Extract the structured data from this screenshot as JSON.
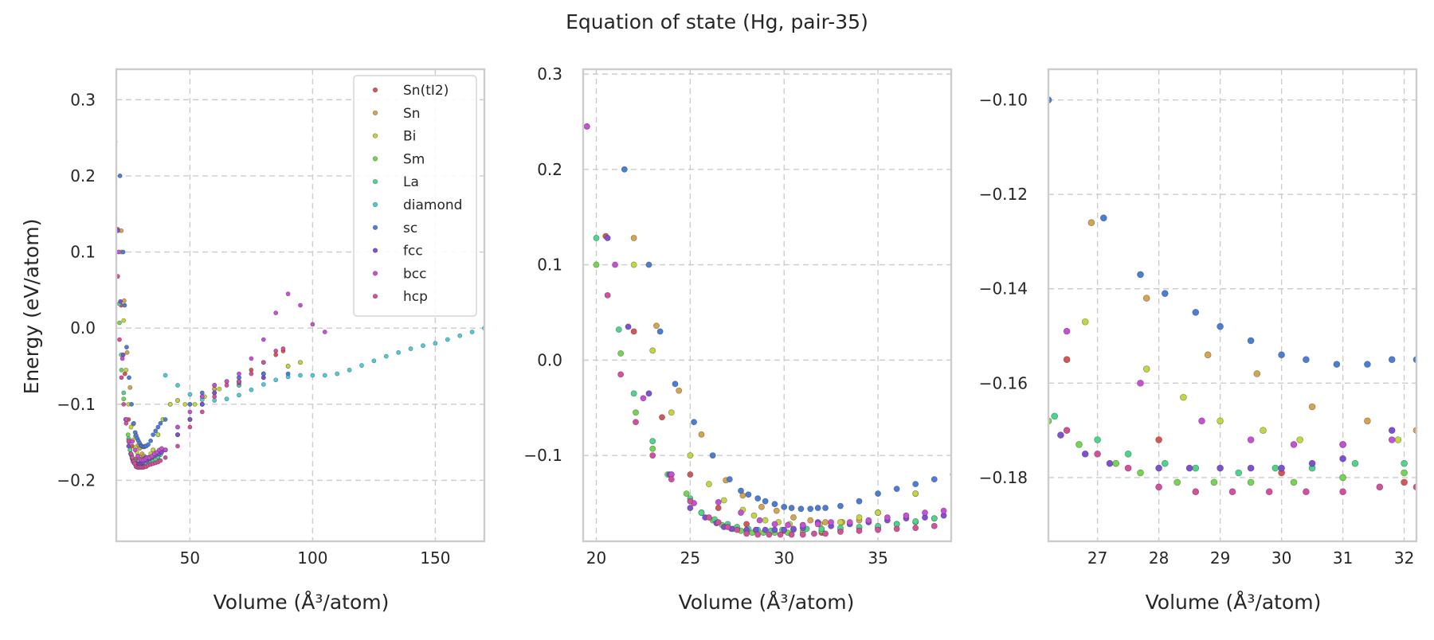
{
  "chart_data": {
    "type": "scatter",
    "title": "Equation of state (Hg, pair-35)",
    "ylabel": "Energy (eV/atom)",
    "xlabel": "Volume (Å³/atom)",
    "legend": {
      "placement": "top-right",
      "panel": 0
    },
    "grid": true,
    "series_meta": [
      {
        "name": "Sn(tI2)",
        "color": "#d65656"
      },
      {
        "name": "Sn",
        "color": "#d6a34f"
      },
      {
        "name": "Bi",
        "color": "#c3d640"
      },
      {
        "name": "Sm",
        "color": "#72d650"
      },
      {
        "name": "La",
        "color": "#4bd68c"
      },
      {
        "name": "diamond",
        "color": "#4bcdd6"
      },
      {
        "name": "sc",
        "color": "#4a7ed6"
      },
      {
        "name": "fcc",
        "color": "#7f4fd6"
      },
      {
        "name": "bcc",
        "color": "#c94fd6"
      },
      {
        "name": "hcp",
        "color": "#d64f9c"
      }
    ],
    "panels": [
      {
        "xlim": [
          20,
          170
        ],
        "ylim": [
          -0.28,
          0.34
        ],
        "xticks": [
          50,
          100,
          150
        ],
        "xtick_labels": [
          "50",
          "100",
          "150"
        ],
        "yticks": [
          -0.2,
          -0.1,
          0.0,
          0.1,
          0.2,
          0.3
        ],
        "ytick_labels": [
          "−0.2",
          "−0.1",
          "0.0",
          "0.1",
          "0.2",
          "0.3"
        ],
        "marker_size": 2.6
      },
      {
        "xlim": [
          19.3,
          38.9
        ],
        "ylim": [
          -0.19,
          0.305
        ],
        "xticks": [
          20,
          25,
          30,
          35
        ],
        "xtick_labels": [
          "20",
          "25",
          "30",
          "35"
        ],
        "yticks": [
          -0.1,
          0.0,
          0.1,
          0.2,
          0.3
        ],
        "ytick_labels": [
          "−0.1",
          "0.0",
          "0.1",
          "0.2",
          "0.3"
        ],
        "marker_size": 3.6
      },
      {
        "xlim": [
          26.2,
          32.2
        ],
        "ylim": [
          -0.1935,
          -0.0935
        ],
        "xticks": [
          27,
          28,
          29,
          30,
          31,
          32
        ],
        "xtick_labels": [
          "27",
          "28",
          "29",
          "30",
          "31",
          "32"
        ],
        "yticks": [
          -0.18,
          -0.16,
          -0.14,
          -0.12,
          -0.1
        ],
        "ytick_labels": [
          "−0.18",
          "−0.16",
          "−0.14",
          "−0.12",
          "−0.10"
        ],
        "marker_size": 4.0
      }
    ],
    "series": [
      {
        "name": "Sn(tI2)",
        "x": [
          20.5,
          22,
          23.5,
          25,
          26.5,
          28,
          30,
          32,
          35,
          40,
          45,
          50,
          55,
          60,
          65,
          70,
          75,
          80,
          85,
          88
        ],
        "y": [
          0.13,
          0.03,
          -0.06,
          -0.12,
          -0.155,
          -0.172,
          -0.179,
          -0.181,
          -0.177,
          -0.16,
          -0.14,
          -0.12,
          -0.1,
          -0.08,
          -0.07,
          -0.065,
          -0.055,
          -0.045,
          -0.035,
          -0.03
        ]
      },
      {
        "name": "Sn",
        "x": [
          22,
          23.2,
          24.4,
          25.6,
          26.9,
          27.8,
          28.8,
          29.6,
          30.5,
          31.4,
          32.2,
          33.1,
          34,
          35,
          37,
          39,
          42,
          45,
          50,
          55,
          60,
          70,
          80,
          90,
          95
        ],
        "y": [
          0.128,
          0.036,
          -0.032,
          -0.078,
          -0.126,
          -0.142,
          -0.154,
          -0.158,
          -0.165,
          -0.168,
          -0.17,
          -0.17,
          -0.168,
          -0.16,
          -0.14,
          -0.12,
          -0.1,
          -0.095,
          -0.1,
          -0.09,
          -0.08,
          -0.07,
          -0.06,
          -0.05,
          -0.045
        ]
      },
      {
        "name": "Bi",
        "x": [
          22,
          23,
          24,
          25,
          26,
          26.8,
          27.8,
          28.4,
          29,
          29.7,
          30.3,
          31,
          31.9,
          33,
          34,
          35,
          37,
          39,
          42,
          45,
          48,
          52,
          56,
          62,
          70,
          80,
          90,
          95
        ],
        "y": [
          0.1,
          0.01,
          -0.055,
          -0.1,
          -0.13,
          -0.147,
          -0.157,
          -0.163,
          -0.168,
          -0.17,
          -0.172,
          -0.173,
          -0.172,
          -0.17,
          -0.165,
          -0.16,
          -0.14,
          -0.12,
          -0.1,
          -0.095,
          -0.1,
          -0.1,
          -0.09,
          -0.08,
          -0.07,
          -0.06,
          -0.05,
          -0.045
        ]
      },
      {
        "name": "Sm",
        "x": [
          20,
          21.3,
          22.1,
          23,
          23.8,
          24.8,
          25.6,
          26.2,
          26.7,
          27.3,
          27.7,
          28.3,
          28.9,
          29.5,
          30.2,
          31,
          32,
          33,
          34,
          35,
          36,
          37,
          38,
          40,
          45,
          50,
          55,
          60,
          70,
          80
        ],
        "y": [
          0.1,
          0.007,
          -0.055,
          -0.093,
          -0.12,
          -0.14,
          -0.16,
          -0.168,
          -0.173,
          -0.177,
          -0.179,
          -0.181,
          -0.181,
          -0.181,
          -0.181,
          -0.18,
          -0.179,
          -0.178,
          -0.176,
          -0.175,
          -0.172,
          -0.17,
          -0.166,
          -0.16,
          -0.14,
          -0.12,
          -0.1,
          -0.085,
          -0.075,
          -0.065
        ]
      },
      {
        "name": "La",
        "x": [
          20,
          21.2,
          22,
          23,
          24,
          25,
          25.6,
          26.3,
          27,
          27.5,
          28.1,
          28.6,
          29.3,
          29.9,
          30.5,
          31.2,
          32,
          33,
          34,
          35,
          36,
          37,
          38,
          40,
          45,
          50,
          55,
          60,
          70
        ],
        "y": [
          0.128,
          0.032,
          -0.035,
          -0.085,
          -0.12,
          -0.145,
          -0.16,
          -0.167,
          -0.172,
          -0.175,
          -0.177,
          -0.178,
          -0.179,
          -0.178,
          -0.178,
          -0.177,
          -0.177,
          -0.176,
          -0.175,
          -0.174,
          -0.172,
          -0.169,
          -0.166,
          -0.16,
          -0.14,
          -0.12,
          -0.1,
          -0.085,
          -0.075
        ]
      },
      {
        "name": "diamond",
        "x": [
          40,
          45,
          50,
          55,
          60,
          65,
          70,
          75,
          80,
          85,
          90,
          95,
          100,
          105,
          110,
          115,
          120,
          125,
          130,
          135,
          140,
          145,
          150,
          155,
          160,
          165,
          170
        ],
        "y": [
          -0.062,
          -0.075,
          -0.087,
          -0.094,
          -0.095,
          -0.093,
          -0.088,
          -0.081,
          -0.074,
          -0.068,
          -0.064,
          -0.062,
          -0.062,
          -0.062,
          -0.06,
          -0.055,
          -0.049,
          -0.043,
          -0.037,
          -0.032,
          -0.027,
          -0.023,
          -0.02,
          -0.015,
          -0.01,
          -0.005,
          0.0
        ]
      },
      {
        "name": "sc",
        "x": [
          21.5,
          22.8,
          23.4,
          24.2,
          25.2,
          26.2,
          27.1,
          27.7,
          28.1,
          28.6,
          29,
          29.5,
          30,
          30.4,
          30.9,
          31.4,
          31.8,
          32.2,
          33,
          34,
          35,
          36,
          37,
          38,
          40,
          45,
          50,
          55,
          60,
          70,
          80,
          90
        ],
        "y": [
          0.2,
          0.1,
          0.03,
          -0.025,
          -0.065,
          -0.1,
          -0.125,
          -0.137,
          -0.141,
          -0.145,
          -0.148,
          -0.151,
          -0.154,
          -0.155,
          -0.156,
          -0.156,
          -0.155,
          -0.155,
          -0.153,
          -0.148,
          -0.14,
          -0.135,
          -0.13,
          -0.125,
          -0.12,
          -0.13,
          -0.1,
          -0.085,
          -0.075,
          -0.065,
          -0.06,
          -0.06
        ]
      },
      {
        "name": "fcc",
        "x": [
          19.5,
          20.6,
          21.7,
          22.8,
          23.9,
          25,
          25.8,
          26.4,
          26.8,
          27.2,
          28,
          28.5,
          29,
          29.5,
          30,
          30.5,
          31,
          31.8,
          32.5,
          33.5,
          34.5,
          35.5,
          36.5,
          37.5,
          38.5,
          40,
          45,
          50,
          55,
          60,
          70,
          80
        ],
        "y": [
          0.245,
          0.128,
          0.035,
          -0.035,
          -0.12,
          -0.155,
          -0.165,
          -0.171,
          -0.175,
          -0.177,
          -0.178,
          -0.178,
          -0.178,
          -0.178,
          -0.178,
          -0.177,
          -0.176,
          -0.17,
          -0.174,
          -0.172,
          -0.17,
          -0.168,
          -0.166,
          -0.165,
          -0.163,
          -0.16,
          -0.14,
          -0.12,
          -0.1,
          -0.085,
          -0.072,
          -0.065
        ]
      },
      {
        "name": "bcc",
        "x": [
          19.5,
          21,
          22.5,
          24,
          25.2,
          26.5,
          27.7,
          28.7,
          29.5,
          30.2,
          31,
          31.8,
          32.5,
          33.5,
          34.5,
          35.5,
          36.5,
          37.5,
          38.5,
          40,
          45,
          50,
          55,
          60,
          65,
          70,
          75,
          80,
          85,
          90,
          95,
          100,
          105
        ],
        "y": [
          0.245,
          0.1,
          -0.04,
          -0.12,
          -0.15,
          -0.149,
          -0.16,
          -0.168,
          -0.172,
          -0.173,
          -0.173,
          -0.172,
          -0.17,
          -0.17,
          -0.168,
          -0.165,
          -0.163,
          -0.16,
          -0.158,
          -0.16,
          -0.13,
          -0.11,
          -0.09,
          -0.075,
          -0.07,
          -0.06,
          -0.04,
          -0.015,
          0.02,
          0.045,
          0.03,
          0.005,
          -0.005
        ]
      },
      {
        "name": "hcp",
        "x": [
          20.6,
          21.3,
          22.1,
          23,
          24,
          25,
          26,
          26.5,
          27,
          27.5,
          28,
          28.6,
          29.2,
          29.8,
          30.4,
          31,
          31.6,
          32.2,
          33,
          34,
          35,
          36,
          37,
          38,
          40,
          45,
          50,
          55,
          60,
          65,
          70,
          75,
          80,
          85,
          88
        ],
        "y": [
          0.068,
          -0.015,
          -0.065,
          -0.1,
          -0.125,
          -0.148,
          -0.165,
          -0.17,
          -0.175,
          -0.178,
          -0.182,
          -0.183,
          -0.183,
          -0.183,
          -0.183,
          -0.183,
          -0.182,
          -0.182,
          -0.18,
          -0.179,
          -0.178,
          -0.177,
          -0.176,
          -0.174,
          -0.17,
          -0.155,
          -0.13,
          -0.11,
          -0.09,
          -0.075,
          -0.07,
          -0.06,
          -0.045,
          -0.03,
          -0.027
        ]
      }
    ]
  }
}
